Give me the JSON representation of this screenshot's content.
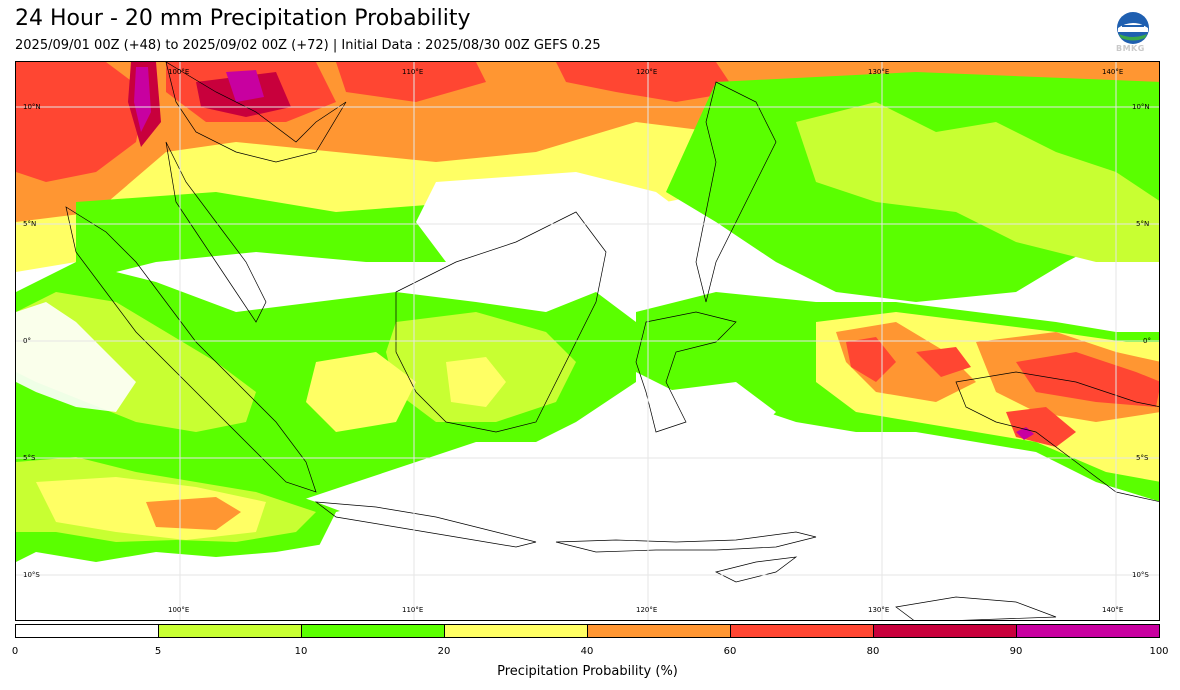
{
  "header": {
    "title": "24 Hour - 20 mm Precipitation Probability",
    "subtitle": "2025/09/01 00Z (+48) to 2025/09/02 00Z (+72) | Initial Data : 2025/08/30 00Z GEFS 0.25"
  },
  "logo": {
    "text": "BMKG",
    "icon": "bmkg-logo-icon"
  },
  "map": {
    "lon_labels": [
      "100°E",
      "110°E",
      "120°E",
      "130°E",
      "140°E"
    ],
    "lat_labels": [
      "10°N",
      "5°N",
      "0°",
      "5°S",
      "10°S"
    ]
  },
  "colorbar": {
    "label": "Precipitation Probability (%)",
    "ticks": [
      "0",
      "5",
      "10",
      "20",
      "40",
      "60",
      "80",
      "90",
      "100"
    ],
    "colors": [
      "#ffffff",
      "#c8ff32",
      "#5aff00",
      "#ffff64",
      "#ff9632",
      "#ff4632",
      "#c8003c",
      "#c800a0"
    ]
  }
}
